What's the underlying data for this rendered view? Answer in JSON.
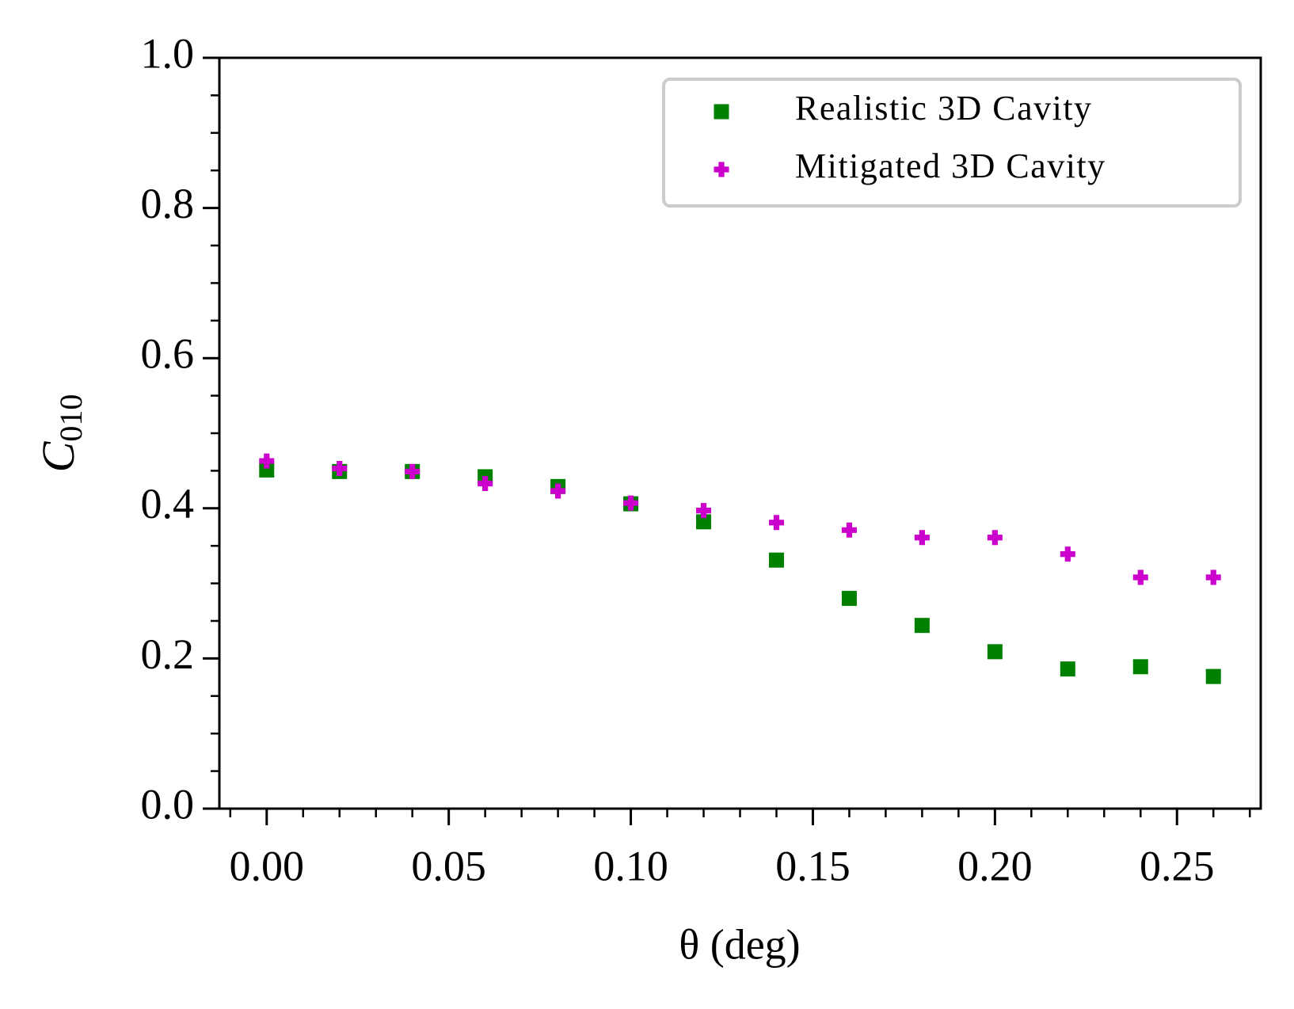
{
  "chart_data": {
    "type": "scatter",
    "xlabel": "θ (deg)",
    "ylabel": "C",
    "ylabel_sub": "010",
    "x": [
      0,
      0.02,
      0.04,
      0.06,
      0.08,
      0.1,
      0.12,
      0.14,
      0.16,
      0.18,
      0.2,
      0.22,
      0.24,
      0.26
    ],
    "series": [
      {
        "name": "Realistic 3D Cavity",
        "color": "#008000",
        "marker": "square",
        "values": [
          0.451,
          0.449,
          0.449,
          0.442,
          0.429,
          0.406,
          0.382,
          0.331,
          0.28,
          0.244,
          0.209,
          0.186,
          0.189,
          0.176
        ]
      },
      {
        "name": "Mitigated 3D Cavity",
        "color": "#cc00cc",
        "marker": "plus",
        "values": [
          0.463,
          0.453,
          0.449,
          0.433,
          0.423,
          0.407,
          0.397,
          0.381,
          0.371,
          0.361,
          0.361,
          0.339,
          0.308,
          0.308
        ]
      }
    ],
    "xlim": [
      -0.013,
      0.273
    ],
    "ylim": [
      0,
      1
    ],
    "xticks": [
      {
        "value": 0,
        "label": "0.00"
      },
      {
        "value": 0.05,
        "label": "0.05"
      },
      {
        "value": 0.1,
        "label": "0.10"
      },
      {
        "value": 0.15,
        "label": "0.15"
      },
      {
        "value": 0.2,
        "label": "0.20"
      },
      {
        "value": 0.25,
        "label": "0.25"
      }
    ],
    "yticks": [
      {
        "value": 0,
        "label": "0.0"
      },
      0.2,
      0.4,
      0.6,
      0.8,
      {
        "value": 1,
        "label": "1.0"
      }
    ],
    "xminorticks": [
      -0.01,
      0.01,
      0.02,
      0.03,
      0.04,
      0.06,
      0.07,
      0.08,
      0.09,
      0.11,
      0.12,
      0.13,
      0.14,
      0.16,
      0.17,
      0.18,
      0.19,
      0.21,
      0.22,
      0.23,
      0.24,
      0.26,
      0.27
    ],
    "yminorticks": [
      0.05,
      0.1,
      0.15,
      0.25,
      0.3,
      0.35,
      0.45,
      0.5,
      0.55,
      0.65,
      0.7,
      0.75,
      0.85,
      0.9,
      0.95
    ],
    "grid": false,
    "legend": "upper right"
  }
}
